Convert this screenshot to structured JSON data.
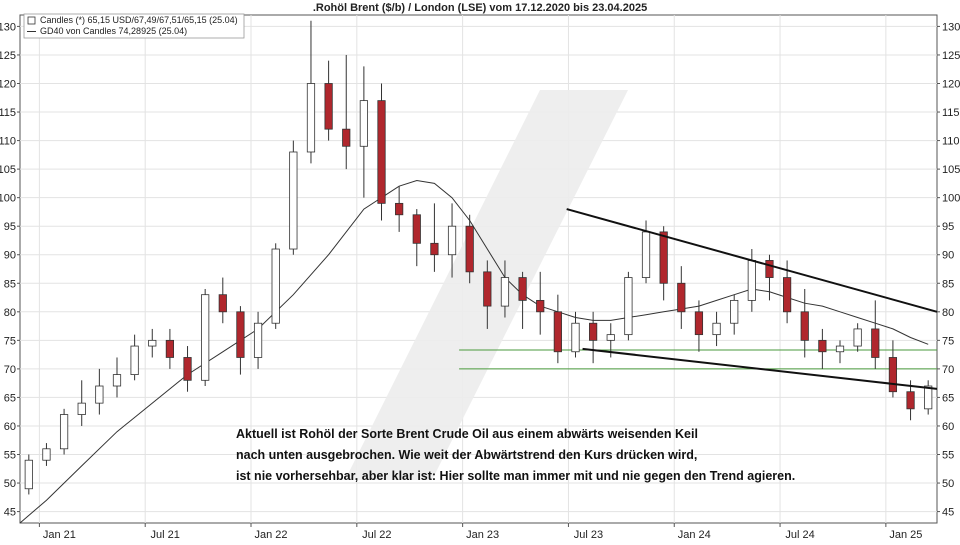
{
  "chart_data": {
    "type": "candlestick",
    "title": ".Rohöl Brent ($/b) / London (LSE) vom 17.12.2020 bis 23.04.2025",
    "legend": {
      "placement": "top-left",
      "entries": [
        {
          "name": "Candles (*) 65,15 USD/67,49/67,51/65,15 (25.04)",
          "symbol": "box"
        },
        {
          "name": "GD40 von Candles 74,28925 (25.04)",
          "symbol": "line"
        }
      ]
    },
    "x_axis": {
      "range": [
        -0.5,
        51.5
      ],
      "ticks": [
        {
          "x": 0.6,
          "label": "Jan 21"
        },
        {
          "x": 6.6,
          "label": "Jul 21"
        },
        {
          "x": 12.6,
          "label": "Jan 22"
        },
        {
          "x": 18.6,
          "label": "Jul 22"
        },
        {
          "x": 24.6,
          "label": "Jan 23"
        },
        {
          "x": 30.6,
          "label": "Jul 23"
        },
        {
          "x": 36.6,
          "label": "Jan 24"
        },
        {
          "x": 42.6,
          "label": "Jul 24"
        },
        {
          "x": 48.6,
          "label": "Jan 25"
        }
      ]
    },
    "y_axis": {
      "range": [
        43,
        132
      ],
      "ticks": [
        45,
        50,
        55,
        60,
        65,
        70,
        75,
        80,
        85,
        90,
        95,
        100,
        105,
        110,
        115,
        120,
        125,
        130
      ],
      "grid": true,
      "sides": [
        "left",
        "right"
      ]
    },
    "series": [
      {
        "name": "Candles",
        "candles": [
          [
            49,
            55,
            48,
            54
          ],
          [
            54,
            57,
            53,
            56
          ],
          [
            56,
            63,
            55,
            62
          ],
          [
            62,
            68,
            60,
            64
          ],
          [
            64,
            70,
            62,
            67
          ],
          [
            67,
            72,
            65,
            69
          ],
          [
            69,
            76,
            68,
            74
          ],
          [
            74,
            77,
            72,
            75
          ],
          [
            75,
            77,
            70,
            72
          ],
          [
            72,
            74,
            66,
            68
          ],
          [
            68,
            84,
            67,
            83
          ],
          [
            83,
            86,
            78,
            80
          ],
          [
            80,
            81,
            69,
            72
          ],
          [
            72,
            80,
            70,
            78
          ],
          [
            78,
            92,
            77,
            91
          ],
          [
            91,
            110,
            90,
            108
          ],
          [
            108,
            131,
            106,
            120
          ],
          [
            120,
            124,
            110,
            112
          ],
          [
            112,
            125,
            105,
            109
          ],
          [
            109,
            123,
            100,
            117
          ],
          [
            117,
            120,
            96,
            99
          ],
          [
            99,
            102,
            94,
            97
          ],
          [
            97,
            98,
            88,
            92
          ],
          [
            92,
            99,
            87,
            90
          ],
          [
            90,
            99,
            86,
            95
          ],
          [
            95,
            97,
            85,
            87
          ],
          [
            87,
            89,
            77,
            81
          ],
          [
            81,
            89,
            79,
            86
          ],
          [
            86,
            87,
            77,
            82
          ],
          [
            82,
            87,
            76,
            80
          ],
          [
            80,
            83,
            71,
            73
          ],
          [
            73,
            80,
            72,
            78
          ],
          [
            78,
            80,
            71,
            75
          ],
          [
            75,
            78,
            72,
            76
          ],
          [
            76,
            87,
            75,
            86
          ],
          [
            86,
            96,
            85,
            94
          ],
          [
            94,
            95,
            82,
            85
          ],
          [
            85,
            88,
            77,
            80
          ],
          [
            80,
            82,
            73,
            76
          ],
          [
            76,
            80,
            74,
            78
          ],
          [
            78,
            83,
            76,
            82
          ],
          [
            82,
            91,
            80,
            89
          ],
          [
            89,
            90,
            82,
            86
          ],
          [
            86,
            89,
            78,
            80
          ],
          [
            80,
            84,
            72,
            75
          ],
          [
            75,
            77,
            70,
            73
          ],
          [
            73,
            75,
            71,
            74
          ],
          [
            74,
            78,
            73,
            77
          ],
          [
            77,
            82,
            70,
            72
          ],
          [
            72,
            75,
            65,
            66
          ],
          [
            66,
            68,
            61,
            63
          ],
          [
            63,
            68,
            62,
            67
          ]
        ]
      },
      {
        "name": "GD40 von Candles",
        "x": [
          -0.5,
          1,
          3,
          5,
          7,
          9,
          11,
          13,
          15,
          17,
          19,
          21,
          22,
          23,
          24,
          25,
          26,
          27,
          28,
          29,
          30,
          31,
          32,
          33,
          34,
          35,
          36,
          37,
          38,
          39,
          40,
          41,
          42,
          43,
          44,
          45,
          46,
          47,
          48,
          49,
          50,
          51
        ],
        "values": [
          43,
          47,
          53,
          59,
          64,
          69,
          73,
          77,
          83,
          90,
          98,
          102,
          103,
          102.5,
          100,
          96,
          91,
          86,
          83,
          81,
          80,
          79,
          78.5,
          78.5,
          79,
          79.5,
          80,
          80.5,
          81,
          82,
          83,
          84,
          83.5,
          82.5,
          81.5,
          81,
          80,
          79,
          78,
          77,
          75.5,
          74.3
        ]
      }
    ],
    "annotations": {
      "trendlines": [
        {
          "name": "upper-wedge-line",
          "from": [
            30.5,
            98
          ],
          "to": [
            51.5,
            80
          ]
        },
        {
          "name": "lower-wedge-line",
          "from": [
            31.4,
            73.5
          ],
          "to": [
            51.5,
            66.5
          ]
        }
      ],
      "horizontal_lines": [
        {
          "name": "support-line-upper",
          "value": 73.3,
          "from_x": 24.4,
          "to_x": 51.5,
          "color": "#4a9a3c"
        },
        {
          "name": "support-line-lower",
          "value": 70.0,
          "from_x": 24.4,
          "to_x": 51.5,
          "color": "#4a9a3c"
        }
      ],
      "note": [
        "Aktuell ist Rohöl der Sorte Brent Crude Oil aus einem abwärts weisenden Keil",
        "nach unten ausgebrochen. Wie weit der Abwärtstrend den Kurs drücken wird,",
        "ist nie vorhersehbar, aber klar ist: Hier sollte man immer mit und nie gegen den Trend agieren."
      ]
    },
    "colors": {
      "bearish": "#b0272d",
      "bullish": "#ffffff",
      "candle_outline": "#333333",
      "ma_line": "#333333",
      "trendline": "#111111",
      "support": "#4a9a3c",
      "grid": "#e3e3e3",
      "watermark": "#ececec"
    }
  }
}
